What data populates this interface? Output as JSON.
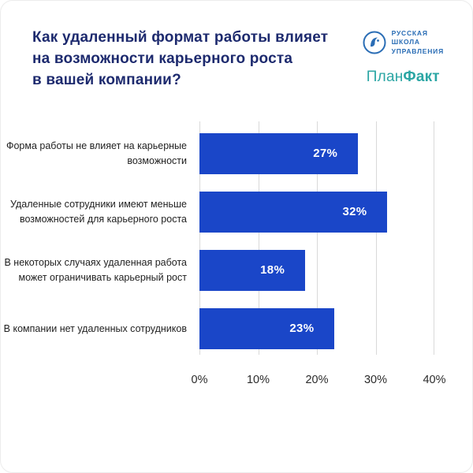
{
  "header": {
    "title": "Как удаленный формат работы влияет\nна возможности карьерного роста\nв вашей компании?"
  },
  "logos": {
    "rsu": {
      "name": "Русская Школа Управления",
      "text": "РУССКАЯ\nШКОЛА\nУПРАВЛЕНИЯ",
      "color": "#2a6db5"
    },
    "planfact": {
      "part1": "План",
      "part2": "Факт",
      "color": "#2ba6a4"
    }
  },
  "chart_data": {
    "type": "bar",
    "orientation": "horizontal",
    "title": "Как удаленный формат работы влияет на возможности карьерного роста в вашей компании?",
    "categories": [
      "Форма работы не влияет на карьерные возможности",
      "Удаленные сотрудники имеют меньше возможностей для карьерного роста",
      "В некоторых случаях удаленная работа может ограничивать карьерный рост",
      "В компании нет удаленных сотрудников"
    ],
    "values": [
      27,
      32,
      18,
      23
    ],
    "value_labels": [
      "27%",
      "32%",
      "18%",
      "23%"
    ],
    "x_ticks": [
      "0%",
      "10%",
      "20%",
      "30%",
      "40%"
    ],
    "xlim": [
      0,
      40
    ],
    "grid": true,
    "bar_color": "#1a46c8"
  },
  "colors": {
    "title": "#1d2a6e",
    "bar": "#1a46c8",
    "gridline": "#d9d9d9"
  }
}
